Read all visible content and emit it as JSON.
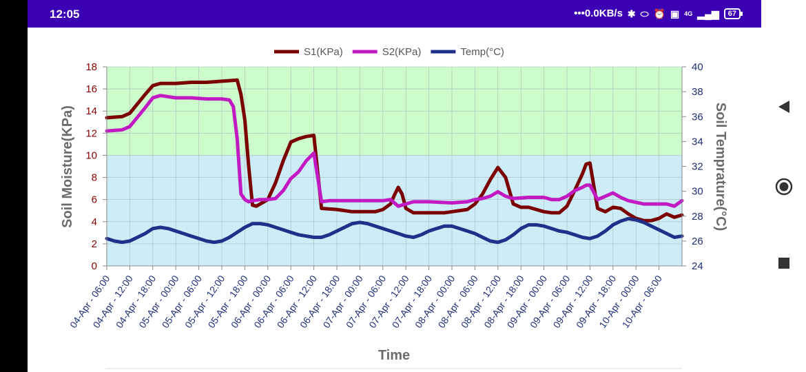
{
  "status_bar": {
    "time": "12:05",
    "net_speed": "•••0.0KB/s",
    "network": "4G",
    "battery": "67",
    "icons": [
      "bluetooth-icon",
      "toggle-icon",
      "alarm-icon",
      "volte-icon",
      "signal-icon",
      "battery-icon"
    ]
  },
  "nav_bar": {
    "icons": [
      "back-icon",
      "home-icon",
      "recents-icon"
    ]
  },
  "chart_data": {
    "type": "line",
    "title": "",
    "xlabel": "Time",
    "ylabel": "Soil Moisture(KPa)",
    "y2label": "Soil Temprature(°C)",
    "ylim": [
      0,
      18
    ],
    "y2lim": [
      24,
      40
    ],
    "yticks": [
      "0",
      "2",
      "4",
      "6",
      "8",
      "10",
      "12",
      "14",
      "16",
      "18"
    ],
    "y2ticks": [
      "24",
      "26",
      "28",
      "30",
      "32",
      "34",
      "36",
      "38",
      "40"
    ],
    "xticks": [
      "04-Apr - 06:00",
      "04-Apr - 12:00",
      "04-Apr - 18:00",
      "05-Apr - 00:00",
      "05-Apr - 06:00",
      "05-Apr - 12:00",
      "05-Apr - 18:00",
      "06-Apr - 00:00",
      "06-Apr - 06:00",
      "06-Apr - 12:00",
      "06-Apr - 18:00",
      "07-Apr - 00:00",
      "07-Apr - 06:00",
      "07-Apr - 12:00",
      "07-Apr - 18:00",
      "08-Apr - 00:00",
      "08-Apr - 06:00",
      "08-Apr - 12:00",
      "08-Apr - 18:00",
      "09-Apr - 00:00",
      "09-Apr - 06:00",
      "09-Apr - 12:00",
      "09-Apr - 18:00",
      "10-Apr - 00:00",
      "10-Apr - 06:00"
    ],
    "x_range_hours": [
      0,
      150
    ],
    "bands": [
      {
        "from": 10,
        "to": 18,
        "color": "#ccfccc"
      },
      {
        "from": 0,
        "to": 10,
        "color": "#ccedf8"
      }
    ],
    "grid": true,
    "legend_position": "top-center",
    "series": [
      {
        "name": "S1(KPa)",
        "axis": "left",
        "color": "#7b0000",
        "x": [
          0,
          4,
          6,
          10,
          12,
          14,
          18,
          22,
          26,
          30,
          34,
          35,
          36,
          37,
          38,
          39,
          40,
          42,
          44,
          46,
          48,
          50,
          52,
          54,
          56,
          60,
          64,
          66,
          70,
          72,
          74,
          75,
          76,
          77,
          78,
          80,
          84,
          88,
          90,
          94,
          96,
          98,
          100,
          102,
          104,
          106,
          108,
          110,
          114,
          116,
          118,
          120,
          122,
          124,
          125,
          126,
          128,
          130,
          132,
          134,
          136,
          138,
          140,
          142,
          144,
          146,
          148,
          150
        ],
        "y": [
          13.4,
          13.5,
          13.8,
          15.5,
          16.3,
          16.5,
          16.5,
          16.6,
          16.6,
          16.7,
          16.8,
          15.5,
          13.2,
          9,
          5.5,
          5.4,
          5.6,
          6,
          7.5,
          9.5,
          11.2,
          11.5,
          11.7,
          11.8,
          5.2,
          5.1,
          4.9,
          4.9,
          4.9,
          5.1,
          5.6,
          6.4,
          7.1,
          6.5,
          5.2,
          4.8,
          4.8,
          4.8,
          4.9,
          5.1,
          5.6,
          6.5,
          7.8,
          8.9,
          8,
          5.6,
          5.3,
          5.3,
          4.9,
          4.8,
          4.8,
          5.4,
          6.8,
          8.3,
          9.2,
          9.3,
          5.2,
          4.9,
          5.3,
          5.2,
          4.7,
          4.3,
          4.1,
          4.1,
          4.3,
          4.7,
          4.4,
          4.6
        ]
      },
      {
        "name": "S2(KPa)",
        "axis": "left",
        "color": "#c21ac2",
        "x": [
          0,
          4,
          6,
          10,
          12,
          14,
          18,
          22,
          26,
          30,
          32,
          33,
          34,
          35,
          36,
          37,
          38,
          40,
          42,
          44,
          46,
          48,
          50,
          52,
          54,
          55,
          56,
          58,
          64,
          70,
          72,
          74,
          76,
          80,
          84,
          90,
          94,
          96,
          98,
          100,
          102,
          104,
          106,
          110,
          114,
          116,
          118,
          120,
          122,
          124,
          125,
          126,
          128,
          130,
          132,
          134,
          136,
          140,
          144,
          146,
          148,
          150
        ],
        "y": [
          12.2,
          12.3,
          12.6,
          14.3,
          15.2,
          15.4,
          15.2,
          15.2,
          15.1,
          15.1,
          15,
          14.4,
          11.5,
          6.5,
          6,
          5.8,
          5.9,
          6,
          6,
          6.1,
          6.8,
          7.9,
          8.5,
          9.5,
          10.2,
          8,
          5.8,
          5.9,
          5.9,
          5.9,
          5.9,
          6,
          5.4,
          5.8,
          5.8,
          5.7,
          5.8,
          6,
          6.1,
          6.3,
          6.7,
          6.3,
          6.1,
          6.2,
          6.2,
          6,
          6,
          6.3,
          6.8,
          7.1,
          7.3,
          7.3,
          6,
          6.3,
          6.6,
          6.2,
          5.9,
          5.6,
          5.6,
          5.6,
          5.4,
          5.9
        ]
      },
      {
        "name": "Temp(°C)",
        "axis": "right",
        "color": "#1f2f8a",
        "x": [
          0,
          2,
          4,
          6,
          8,
          10,
          12,
          14,
          16,
          18,
          20,
          22,
          24,
          26,
          28,
          30,
          32,
          34,
          36,
          38,
          40,
          42,
          44,
          46,
          48,
          50,
          52,
          54,
          56,
          58,
          60,
          62,
          64,
          66,
          68,
          70,
          72,
          74,
          76,
          78,
          80,
          82,
          84,
          86,
          88,
          90,
          92,
          94,
          96,
          98,
          100,
          102,
          104,
          106,
          108,
          110,
          112,
          114,
          116,
          118,
          120,
          122,
          124,
          126,
          128,
          130,
          132,
          134,
          136,
          138,
          140,
          142,
          144,
          146,
          148,
          150
        ],
        "y": [
          26.2,
          26.0,
          25.9,
          26.0,
          26.3,
          26.6,
          27.0,
          27.1,
          27.0,
          26.8,
          26.6,
          26.4,
          26.2,
          26.0,
          25.9,
          26.0,
          26.3,
          26.7,
          27.1,
          27.4,
          27.4,
          27.3,
          27.1,
          26.9,
          26.7,
          26.5,
          26.4,
          26.3,
          26.3,
          26.5,
          26.8,
          27.1,
          27.4,
          27.5,
          27.4,
          27.2,
          27.0,
          26.8,
          26.6,
          26.4,
          26.3,
          26.5,
          26.8,
          27.0,
          27.2,
          27.2,
          27.0,
          26.8,
          26.6,
          26.3,
          26.0,
          25.9,
          26.1,
          26.5,
          27.0,
          27.3,
          27.3,
          27.2,
          27.0,
          26.8,
          26.7,
          26.5,
          26.3,
          26.2,
          26.4,
          26.8,
          27.3,
          27.6,
          27.8,
          27.7,
          27.5,
          27.2,
          26.9,
          26.6,
          26.3,
          26.4
        ]
      }
    ]
  }
}
